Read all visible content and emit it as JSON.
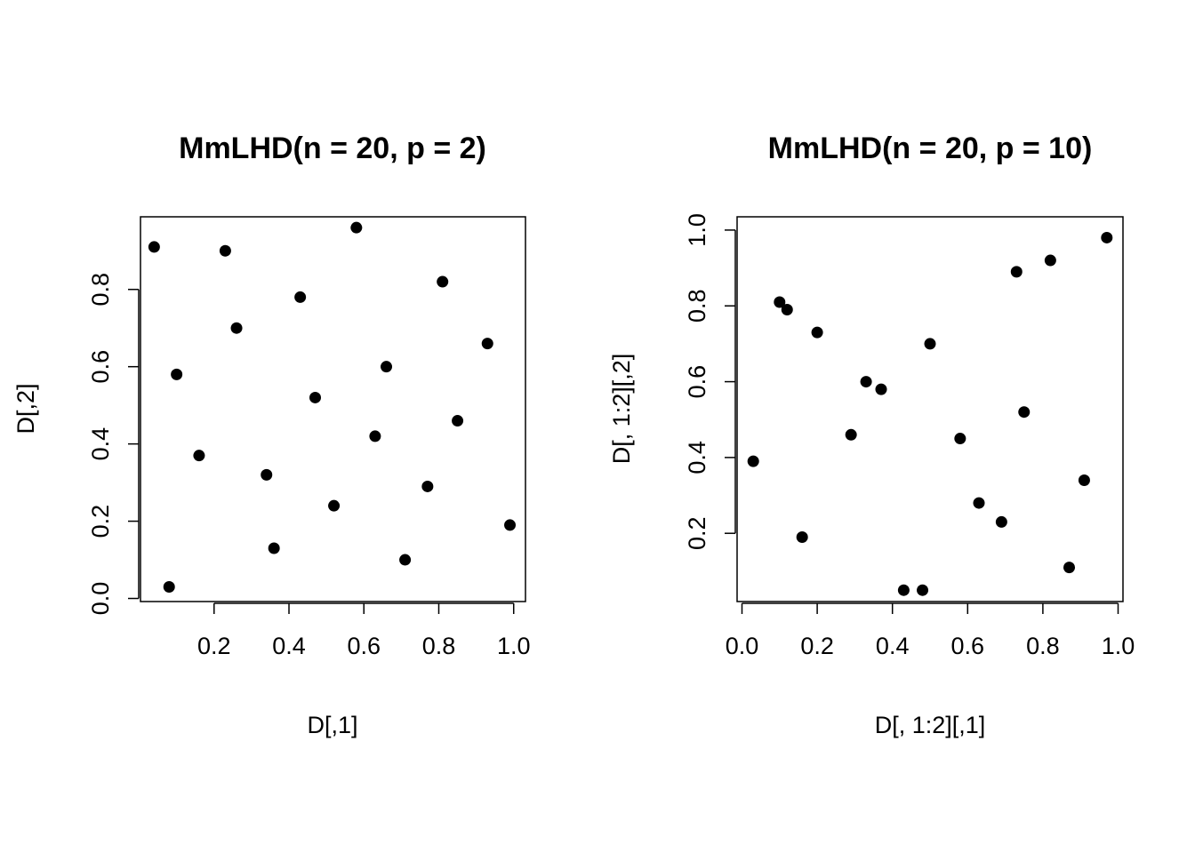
{
  "chart_data": [
    {
      "type": "scatter",
      "title": "MmLHD(n = 20, p = 2)",
      "xlabel": "D[,1]",
      "ylabel": "D[,2]",
      "xticks": [
        0.2,
        0.4,
        0.6,
        0.8,
        1.0
      ],
      "yticks": [
        0.0,
        0.2,
        0.4,
        0.6,
        0.8
      ],
      "xtick_labels": [
        "0.2",
        "0.4",
        "0.6",
        "0.8",
        "1.0"
      ],
      "ytick_labels": [
        "0.0",
        "0.2",
        "0.4",
        "0.6",
        "0.8"
      ],
      "xlim": [
        0.0035,
        1.0315
      ],
      "ylim": [
        -0.008,
        0.988
      ],
      "grid": false,
      "points": [
        {
          "x": 0.04,
          "y": 0.91
        },
        {
          "x": 0.08,
          "y": 0.03
        },
        {
          "x": 0.1,
          "y": 0.58
        },
        {
          "x": 0.16,
          "y": 0.37
        },
        {
          "x": 0.23,
          "y": 0.9
        },
        {
          "x": 0.26,
          "y": 0.7
        },
        {
          "x": 0.34,
          "y": 0.32
        },
        {
          "x": 0.36,
          "y": 0.13
        },
        {
          "x": 0.43,
          "y": 0.78
        },
        {
          "x": 0.47,
          "y": 0.52
        },
        {
          "x": 0.52,
          "y": 0.24
        },
        {
          "x": 0.58,
          "y": 0.96
        },
        {
          "x": 0.63,
          "y": 0.42
        },
        {
          "x": 0.66,
          "y": 0.6
        },
        {
          "x": 0.71,
          "y": 0.1
        },
        {
          "x": 0.77,
          "y": 0.29
        },
        {
          "x": 0.81,
          "y": 0.82
        },
        {
          "x": 0.85,
          "y": 0.46
        },
        {
          "x": 0.93,
          "y": 0.66
        },
        {
          "x": 0.99,
          "y": 0.19
        }
      ]
    },
    {
      "type": "scatter",
      "title": "MmLHD(n = 20, p = 10)",
      "xlabel": "D[, 1:2][,1]",
      "ylabel": "D[, 1:2][,2]",
      "xticks": [
        0.0,
        0.2,
        0.4,
        0.6,
        0.8,
        1.0
      ],
      "yticks": [
        0.2,
        0.4,
        0.6,
        0.8,
        1.0
      ],
      "xtick_labels": [
        "0.0",
        "0.2",
        "0.4",
        "0.6",
        "0.8",
        "1.0"
      ],
      "ytick_labels": [
        "0.2",
        "0.4",
        "0.6",
        "0.8",
        "1.0"
      ],
      "xlim": [
        -0.013,
        1.013
      ],
      "ylim": [
        0.02,
        1.035
      ],
      "grid": false,
      "points": [
        {
          "x": 0.03,
          "y": 0.39
        },
        {
          "x": 0.1,
          "y": 0.81
        },
        {
          "x": 0.12,
          "y": 0.79
        },
        {
          "x": 0.16,
          "y": 0.19
        },
        {
          "x": 0.2,
          "y": 0.73
        },
        {
          "x": 0.29,
          "y": 0.46
        },
        {
          "x": 0.33,
          "y": 0.6
        },
        {
          "x": 0.37,
          "y": 0.58
        },
        {
          "x": 0.43,
          "y": 0.05
        },
        {
          "x": 0.48,
          "y": 0.05
        },
        {
          "x": 0.5,
          "y": 0.7
        },
        {
          "x": 0.58,
          "y": 0.45
        },
        {
          "x": 0.63,
          "y": 0.28
        },
        {
          "x": 0.69,
          "y": 0.23
        },
        {
          "x": 0.73,
          "y": 0.89
        },
        {
          "x": 0.75,
          "y": 0.52
        },
        {
          "x": 0.82,
          "y": 0.92
        },
        {
          "x": 0.87,
          "y": 0.11
        },
        {
          "x": 0.91,
          "y": 0.34
        },
        {
          "x": 0.97,
          "y": 0.98
        }
      ]
    }
  ]
}
